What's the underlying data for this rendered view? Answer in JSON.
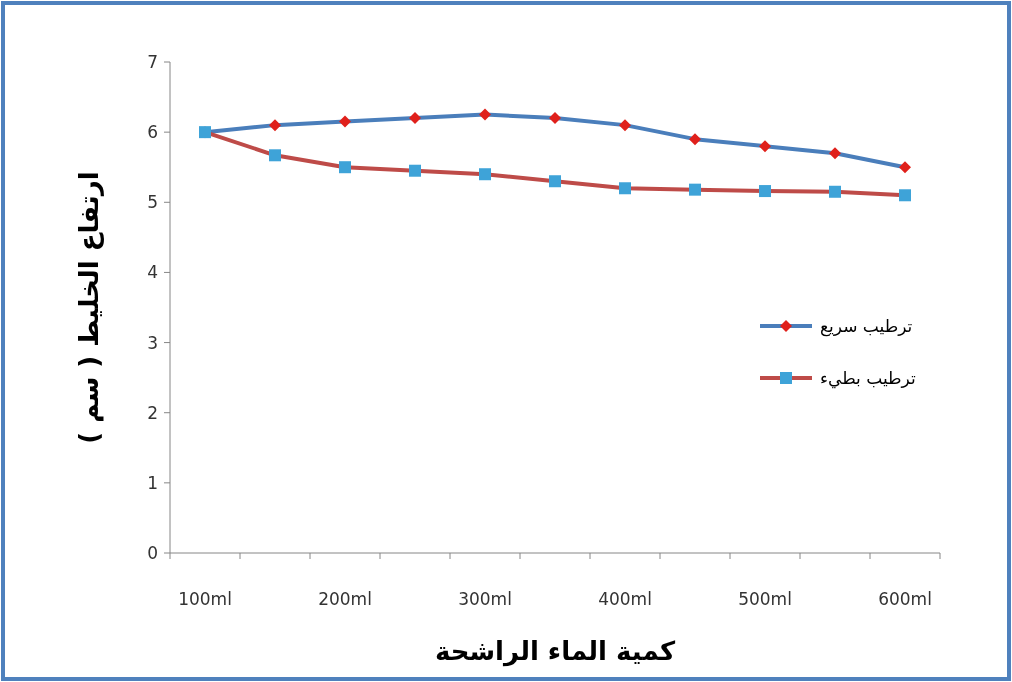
{
  "chart_data": {
    "type": "line",
    "xlabel": "كمية الماء الراشحة",
    "ylabel": "ارتفاع الخليط ( سم )",
    "categories": [
      "100ml",
      null,
      "200ml",
      null,
      "300ml",
      null,
      "400ml",
      null,
      "500ml",
      null,
      "600ml"
    ],
    "ylim": [
      0,
      7
    ],
    "yticks": [
      0,
      1,
      2,
      3,
      4,
      5,
      6,
      7
    ],
    "grid": false,
    "legend": "right",
    "series": [
      {
        "name": "ترطيب سريع",
        "color": "#4a7ebb",
        "marker": "diamond",
        "colors": [
          "#e0201b",
          "#e0201b",
          "#e0201b",
          "#e0201b",
          "#e0201b",
          "#e0201b",
          "#e0201b",
          "#e0201b",
          "#e0201b",
          "#e0201b",
          "#e0201b"
        ],
        "values": [
          6.0,
          6.1,
          6.15,
          6.2,
          6.25,
          6.2,
          6.1,
          5.9,
          5.8,
          5.7,
          5.5
        ]
      },
      {
        "name": "ترطيب بطيء",
        "color": "#be4b48",
        "marker": "square",
        "colors": [
          "#3ea3d8",
          "#3ea3d8",
          "#3ea3d8",
          "#3ea3d8",
          "#3ea3d8",
          "#3ea3d8",
          "#3ea3d8",
          "#3ea3d8",
          "#3ea3d8",
          "#3ea3d8",
          "#3ea3d8"
        ],
        "values": [
          6.0,
          5.67,
          5.5,
          5.45,
          5.4,
          5.3,
          5.2,
          5.18,
          5.16,
          5.15,
          5.1
        ]
      }
    ]
  }
}
